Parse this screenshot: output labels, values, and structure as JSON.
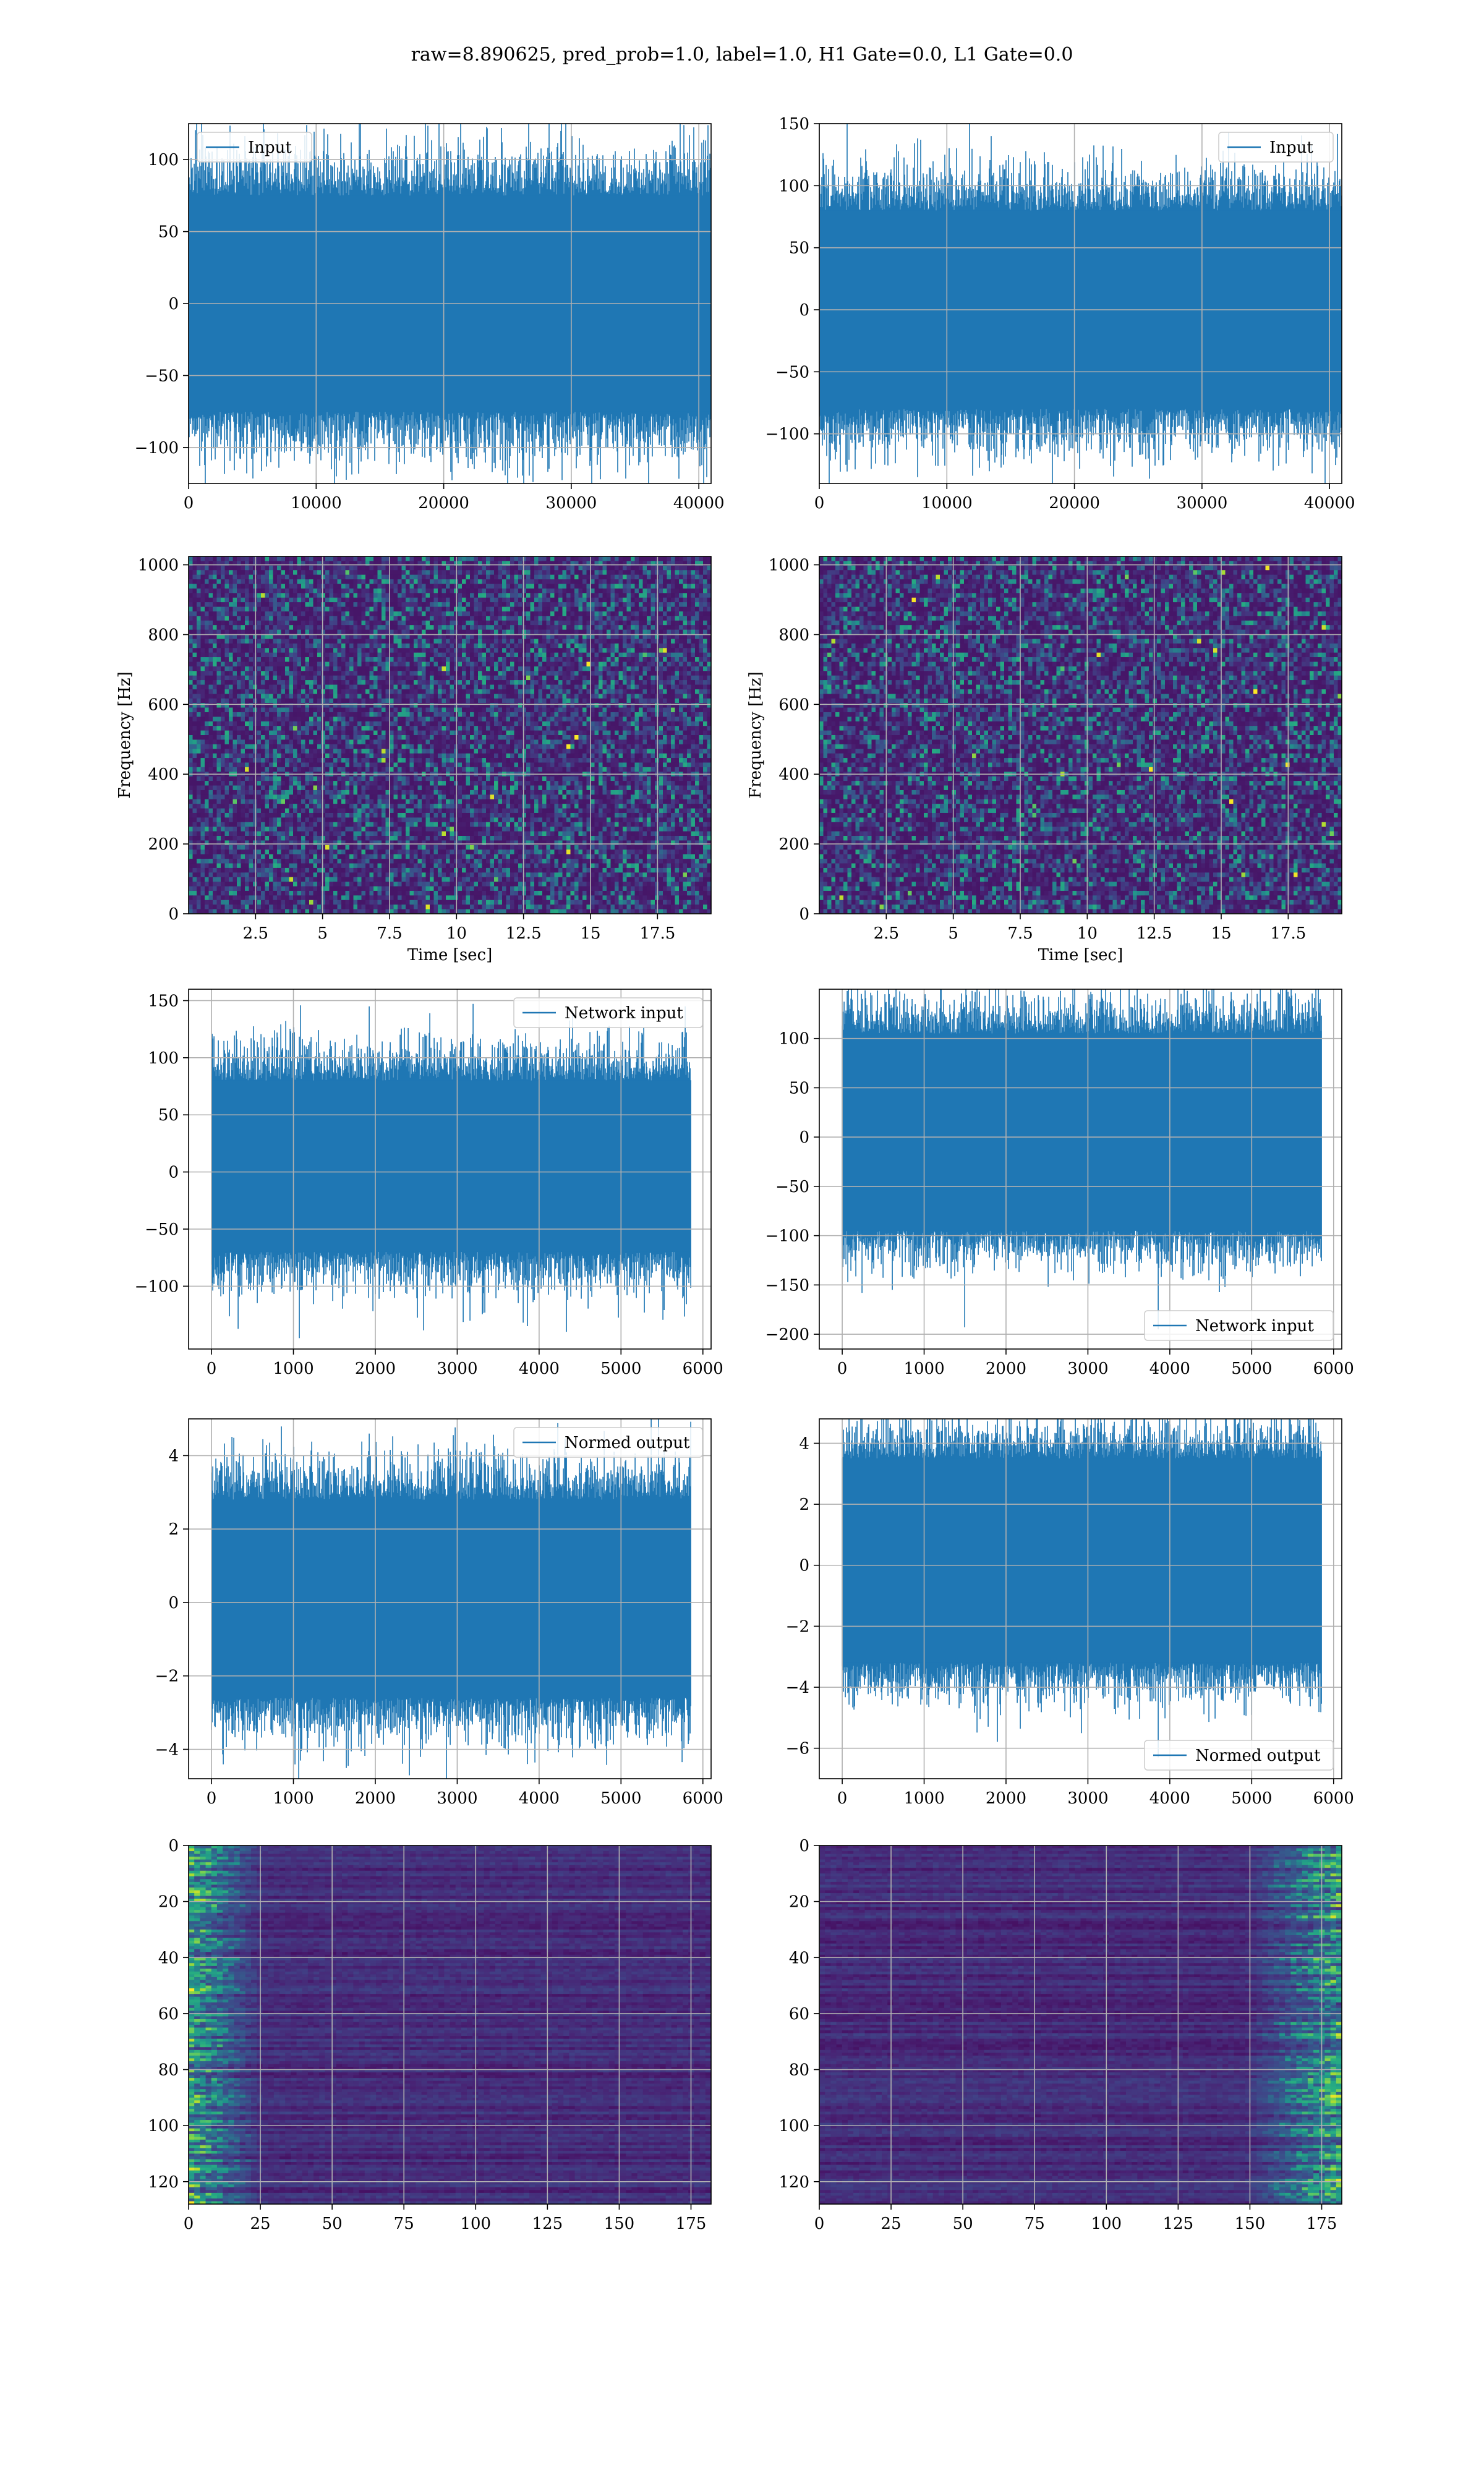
{
  "figure": {
    "suptitle": "raw=8.890625, pred_prob=1.0, label=1.0, H1 Gate=0.0, L1 Gate=0.0",
    "line_color": "#1f77b4",
    "grid_color": "#b0b0b0"
  },
  "chart_data": [
    {
      "id": "input-h1",
      "type": "line",
      "row": 0,
      "col": 0,
      "xlim": [
        0,
        40960
      ],
      "ylim": [
        -125,
        125
      ],
      "xticks": [
        0,
        10000,
        20000,
        30000,
        40000
      ],
      "yticks": [
        -100,
        -50,
        0,
        50,
        100
      ],
      "legend": "Input",
      "legend_loc": "upper left",
      "series": {
        "n_points": 40960,
        "band": [
          -75,
          75
        ],
        "sd": 22,
        "min": -124,
        "max": 128
      },
      "grid": true
    },
    {
      "id": "input-l1",
      "type": "line",
      "row": 0,
      "col": 1,
      "xlim": [
        0,
        40960
      ],
      "ylim": [
        -140,
        150
      ],
      "xticks": [
        0,
        10000,
        20000,
        30000,
        40000
      ],
      "yticks": [
        -100,
        -50,
        0,
        50,
        100,
        150
      ],
      "legend": "Input",
      "legend_loc": "upper right",
      "series": {
        "n_points": 40960,
        "band": [
          -80,
          80
        ],
        "sd": 23,
        "min": -125,
        "max": 140
      },
      "grid": true
    },
    {
      "id": "spec-h1",
      "type": "heatmap",
      "row": 1,
      "col": 0,
      "xlim": [
        0,
        19.5
      ],
      "ylim": [
        0,
        1024
      ],
      "xticks": [
        2.5,
        5.0,
        7.5,
        10.0,
        12.5,
        15.0,
        17.5
      ],
      "yticks": [
        0,
        200,
        400,
        600,
        800,
        1000
      ],
      "xlabel": "Time [sec]",
      "ylabel": "Frequency [Hz]",
      "colormap": "viridis",
      "grid": true
    },
    {
      "id": "spec-l1",
      "type": "heatmap",
      "row": 1,
      "col": 1,
      "xlim": [
        0,
        19.5
      ],
      "ylim": [
        0,
        1024
      ],
      "xticks": [
        2.5,
        5.0,
        7.5,
        10.0,
        12.5,
        15.0,
        17.5
      ],
      "yticks": [
        0,
        200,
        400,
        600,
        800,
        1000
      ],
      "xlabel": "Time [sec]",
      "ylabel": "Frequency [Hz]",
      "colormap": "viridis",
      "grid": true
    },
    {
      "id": "netin-h1",
      "type": "line",
      "row": 2,
      "col": 0,
      "xlim": [
        -280,
        6100
      ],
      "ylim": [
        -155,
        160
      ],
      "xticks": [
        0,
        1000,
        2000,
        3000,
        4000,
        5000,
        6000
      ],
      "yticks": [
        -100,
        -50,
        0,
        50,
        100,
        150
      ],
      "legend": "Network input",
      "legend_loc": "upper right",
      "series": {
        "n_points": 5850,
        "band": [
          -70,
          80
        ],
        "sd": 22,
        "min": -135,
        "max": 145
      },
      "grid": true
    },
    {
      "id": "netin-l1",
      "type": "line",
      "row": 2,
      "col": 1,
      "xlim": [
        -280,
        6100
      ],
      "ylim": [
        -215,
        150
      ],
      "xticks": [
        0,
        1000,
        2000,
        3000,
        4000,
        5000,
        6000
      ],
      "yticks": [
        -200,
        -150,
        -100,
        -50,
        0,
        50,
        100
      ],
      "legend": "Network input",
      "legend_loc": "lower right",
      "series": {
        "n_points": 5850,
        "band": [
          -95,
          105
        ],
        "sd": 24,
        "min": -195,
        "max": 133
      },
      "grid": true
    },
    {
      "id": "normed-h1",
      "type": "line",
      "row": 3,
      "col": 0,
      "xlim": [
        -280,
        6100
      ],
      "ylim": [
        -4.8,
        5.0
      ],
      "xticks": [
        0,
        1000,
        2000,
        3000,
        4000,
        5000,
        6000
      ],
      "yticks": [
        -4,
        -2,
        0,
        2,
        4
      ],
      "legend": "Normed output",
      "legend_loc": "upper right",
      "series": {
        "n_points": 5850,
        "band": [
          -2.6,
          2.8
        ],
        "sd": 0.75,
        "min": -4.4,
        "max": 4.6
      },
      "grid": true
    },
    {
      "id": "normed-l1",
      "type": "line",
      "row": 3,
      "col": 1,
      "xlim": [
        -280,
        6100
      ],
      "ylim": [
        -7.0,
        4.8
      ],
      "xticks": [
        0,
        1000,
        2000,
        3000,
        4000,
        5000,
        6000
      ],
      "yticks": [
        -6,
        -4,
        -2,
        0,
        2,
        4
      ],
      "legend": "Normed output",
      "legend_loc": "lower right",
      "series": {
        "n_points": 5850,
        "band": [
          -3.2,
          3.5
        ],
        "sd": 0.82,
        "min": -6.3,
        "max": 4.3
      },
      "grid": true
    },
    {
      "id": "act-h1",
      "type": "heatmap",
      "row": 4,
      "col": 0,
      "xlim": [
        0,
        182
      ],
      "ylim": [
        128,
        0
      ],
      "xticks": [
        0,
        25,
        50,
        75,
        100,
        125,
        150,
        175
      ],
      "yticks": [
        0,
        20,
        40,
        60,
        80,
        100,
        120
      ],
      "colormap": "viridis",
      "hot_side": "left",
      "grid": true
    },
    {
      "id": "act-l1",
      "type": "heatmap",
      "row": 4,
      "col": 1,
      "xlim": [
        0,
        182
      ],
      "ylim": [
        128,
        0
      ],
      "xticks": [
        0,
        25,
        50,
        75,
        100,
        125,
        150,
        175
      ],
      "yticks": [
        0,
        20,
        40,
        60,
        80,
        100,
        120
      ],
      "colormap": "viridis",
      "hot_side": "right",
      "grid": true
    }
  ]
}
